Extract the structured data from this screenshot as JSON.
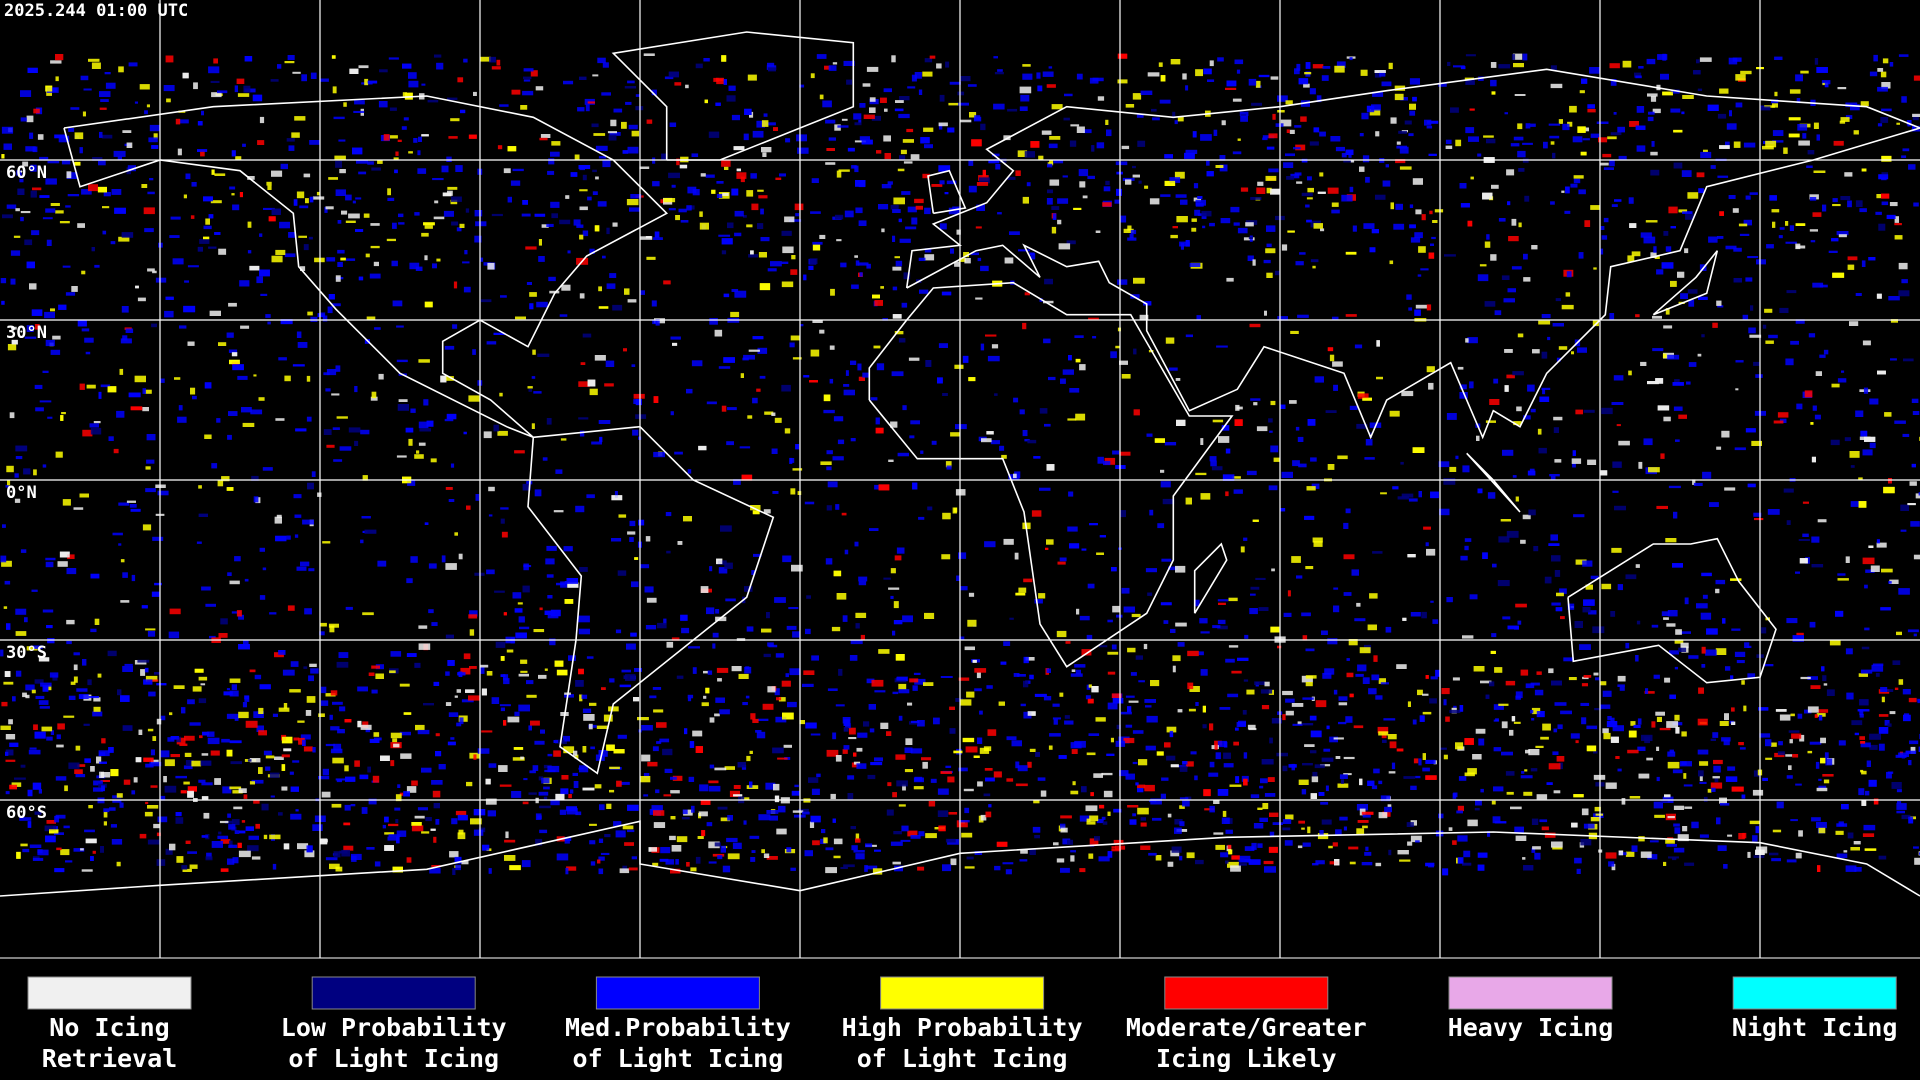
{
  "header": {
    "timestamp": "2025.244 01:00 UTC"
  },
  "map": {
    "lat_labels": [
      "60°N",
      "30°N",
      "0°N",
      "30°S",
      "60°S"
    ]
  },
  "legend": {
    "items": [
      {
        "line1": "No Icing",
        "line2": "Retrieval",
        "color": "#f0f0f0"
      },
      {
        "line1": "Low Probability",
        "line2": "of Light Icing",
        "color": "#000080"
      },
      {
        "line1": "Med.Probability",
        "line2": "of Light Icing",
        "color": "#0000ff"
      },
      {
        "line1": "High Probability",
        "line2": "of Light Icing",
        "color": "#ffff00"
      },
      {
        "line1": "Moderate/Greater",
        "line2": "Icing Likely",
        "color": "#ff0000"
      },
      {
        "line1": "Heavy Icing",
        "line2": "",
        "color": "#e8a8e8"
      },
      {
        "line1": "Night Icing",
        "line2": "",
        "color": "#00ffff"
      }
    ]
  }
}
